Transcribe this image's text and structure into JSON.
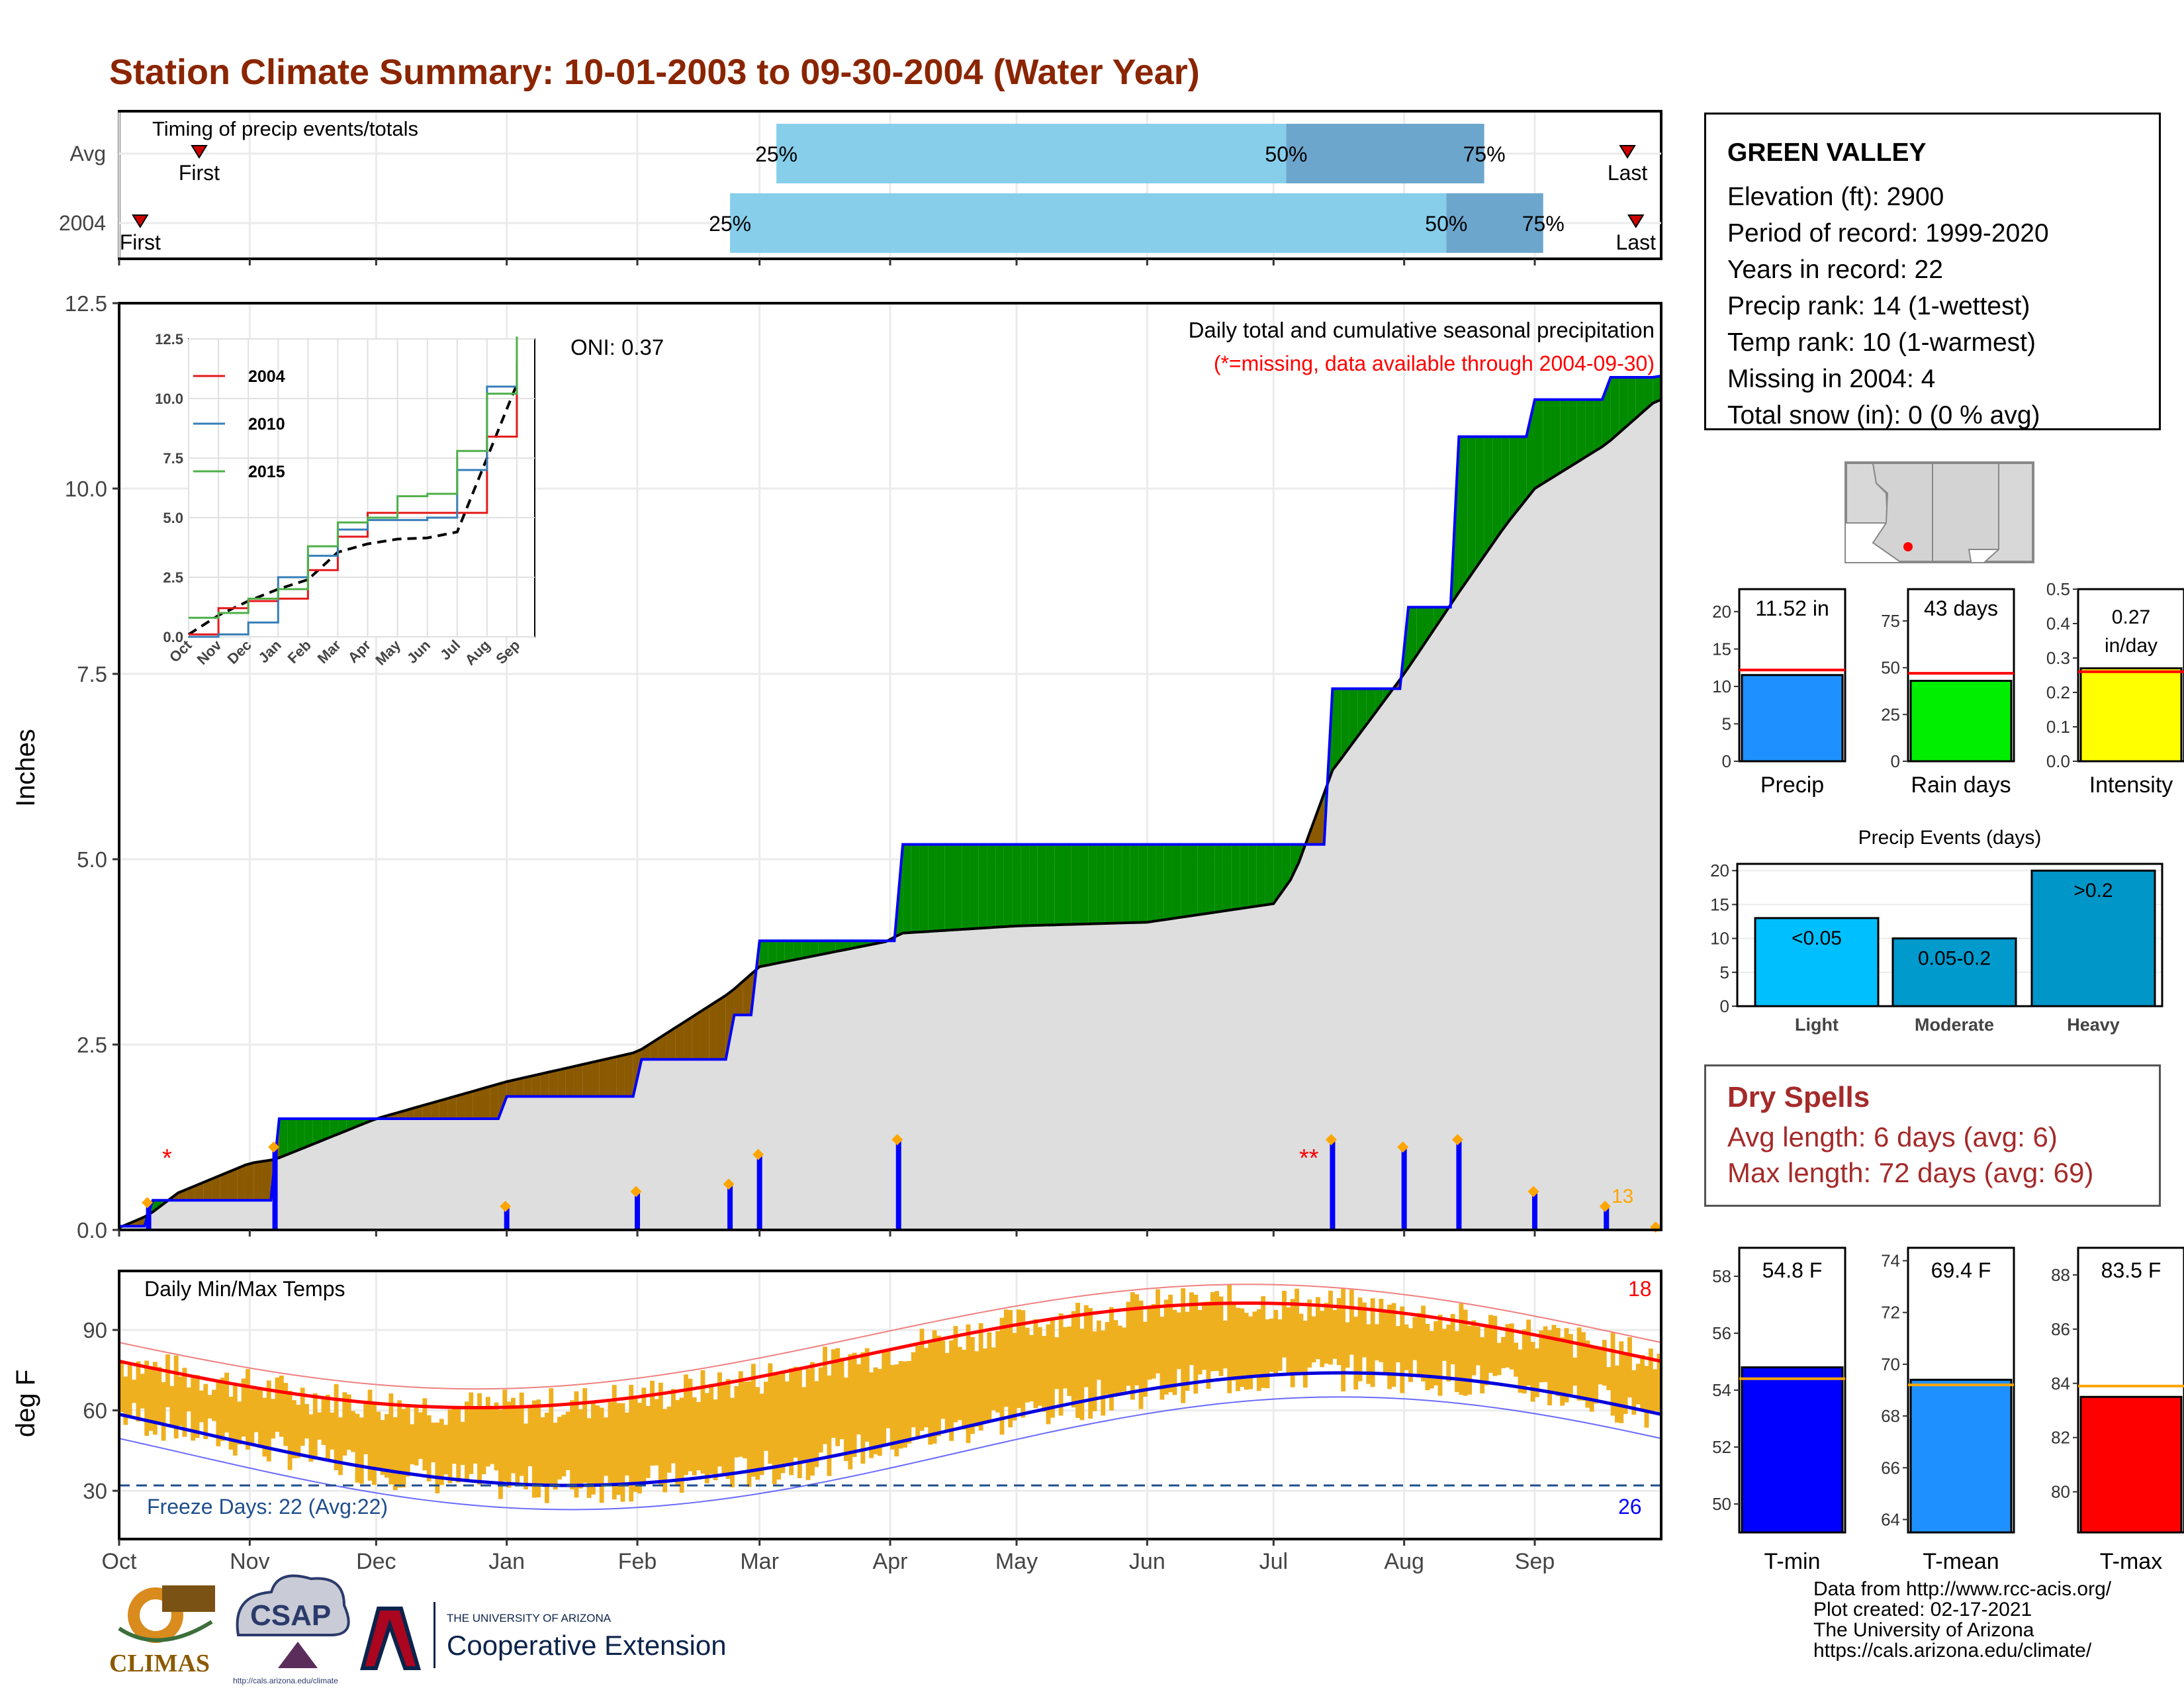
{
  "title": "Station Climate Summary: 10-01-2003 to 09-30-2004 (Water Year)",
  "timing_panel": {
    "label": "Timing of precip events/totals",
    "rows": [
      {
        "name": "Avg",
        "first": "2003-10-20",
        "q25": "2004-03-05",
        "q50": "2004-07-04",
        "q75": "2004-08-20",
        "last": "2004-09-23"
      },
      {
        "name": "2004",
        "first": "2003-10-06",
        "q25": "2004-02-23",
        "q50": "2004-08-11",
        "q75": "2004-09-03",
        "last": "2004-09-25"
      }
    ],
    "first_label": "First",
    "last_label": "Last",
    "q25_label": "25%",
    "q50_label": "50%",
    "q75_label": "75%"
  },
  "precip_panel": {
    "title": "Daily total and cumulative seasonal precipitation",
    "subtitle": "(*=missing, data available through 2004-09-30)",
    "oni": "ONI: 0.37",
    "ylabel": "Inches",
    "yticks": [
      "0.0",
      "2.5",
      "5.0",
      "7.5",
      "10.0",
      "12.5"
    ],
    "corner_count": "13"
  },
  "temp_panel": {
    "title": "Daily Min/Max Temps",
    "ylabel": "deg F",
    "yticks": [
      "30",
      "60",
      "90"
    ],
    "freeze_label": "Freeze Days: 22 (Avg:22)",
    "high_count": "18",
    "low_count": "26"
  },
  "month_ticks": [
    "Oct",
    "Nov",
    "Dec",
    "Jan",
    "Feb",
    "Mar",
    "Apr",
    "May",
    "Jun",
    "Jul",
    "Aug",
    "Sep"
  ],
  "chart_data": [
    {
      "type": "line",
      "title": "Daily total and cumulative seasonal precipitation",
      "ylabel": "Inches",
      "ylim": [
        0,
        12.5
      ],
      "x": [
        "2003-10-01",
        "2003-10-08",
        "2003-10-15",
        "2003-11-01",
        "2003-11-07",
        "2003-12-01",
        "2004-01-01",
        "2004-02-01",
        "2004-02-23",
        "2004-03-01",
        "2004-04-01",
        "2004-04-03",
        "2004-05-01",
        "2004-06-01",
        "2004-07-01",
        "2004-07-06",
        "2004-07-15",
        "2004-08-01",
        "2004-08-14",
        "2004-08-25",
        "2004-09-01",
        "2004-09-18",
        "2004-09-30"
      ],
      "series": [
        {
          "name": "2004",
          "values": [
            0.05,
            0.4,
            0.4,
            0.4,
            1.5,
            1.5,
            1.8,
            2.3,
            2.9,
            3.9,
            3.9,
            5.2,
            5.2,
            5.2,
            5.2,
            5.2,
            7.3,
            8.4,
            10.7,
            10.7,
            11.2,
            11.5,
            11.52
          ]
        },
        {
          "name": "Avg",
          "values": [
            0.03,
            0.2,
            0.5,
            0.9,
            0.95,
            1.5,
            2.0,
            2.4,
            3.2,
            3.55,
            3.9,
            4.0,
            4.1,
            4.15,
            4.4,
            4.8,
            6.2,
            7.5,
            8.6,
            9.5,
            10.0,
            10.6,
            11.2
          ]
        }
      ]
    },
    {
      "type": "line",
      "xticks": [
        "Oct",
        "Nov",
        "Dec",
        "Jan",
        "Feb",
        "Mar",
        "Apr",
        "May",
        "Jun",
        "Jul",
        "Aug",
        "Sep"
      ],
      "yticks": [
        "0.0",
        "2.5",
        "5.0",
        "7.5",
        "10.0",
        "12.5"
      ],
      "ylim": [
        0,
        12.5
      ],
      "legend": "top-left",
      "series": [
        {
          "name": "2004",
          "color": "#e41a1c",
          "values": [
            0.1,
            1.2,
            1.5,
            1.6,
            2.8,
            4.2,
            5.2,
            5.2,
            5.2,
            5.2,
            8.4,
            11.5
          ]
        },
        {
          "name": "2010",
          "color": "#377eb8",
          "values": [
            0.0,
            0.1,
            0.6,
            2.5,
            3.4,
            4.5,
            4.9,
            4.9,
            5.0,
            7.0,
            10.5,
            11.6
          ]
        },
        {
          "name": "2015",
          "color": "#4daf4a",
          "values": [
            0.8,
            1.0,
            1.6,
            2.0,
            3.8,
            4.8,
            5.0,
            5.9,
            6.0,
            7.8,
            10.2,
            12.6
          ]
        }
      ]
    },
    {
      "type": "bar",
      "categories": [
        "Precip",
        "Rain days",
        "Intensity"
      ],
      "values": [
        11.52,
        43,
        0.27
      ],
      "averages": [
        12.2,
        47,
        0.26
      ],
      "value_labels": [
        "11.52 in",
        "43 days",
        "0.27 in/day"
      ],
      "yticks": [
        [
          "0",
          "5",
          "10",
          "15",
          "20"
        ],
        [
          "0",
          "25",
          "50",
          "75"
        ],
        [
          "0.0",
          "0.1",
          "0.2",
          "0.3",
          "0.4",
          "0.5"
        ]
      ],
      "colors": [
        "#1e90ff",
        "#00ee00",
        "#ffff00"
      ]
    },
    {
      "type": "bar",
      "title": "Precip Events (days)",
      "categories": [
        "Light",
        "Moderate",
        "Heavy"
      ],
      "values": [
        13,
        10,
        20
      ],
      "value_labels": [
        "<0.05",
        "0.05-0.2",
        ">0.2"
      ],
      "yticks": [
        "0",
        "5",
        "10",
        "15",
        "20"
      ],
      "ylim": [
        0,
        21
      ],
      "colors": [
        "#00bfff",
        "#009acd",
        "#0096c8"
      ]
    },
    {
      "type": "bar",
      "categories": [
        "T-min",
        "T-mean",
        "T-max"
      ],
      "values": [
        54.8,
        69.4,
        83.5
      ],
      "averages": [
        54.4,
        69.2,
        83.9
      ],
      "value_labels": [
        "54.8 F",
        "69.4 F",
        "83.5 F"
      ],
      "yticks": [
        [
          "50",
          "52",
          "54",
          "56",
          "58"
        ],
        [
          "64",
          "66",
          "68",
          "70",
          "72",
          "74"
        ],
        [
          "80",
          "82",
          "84",
          "86",
          "88"
        ]
      ],
      "ylims": [
        [
          49,
          59
        ],
        [
          63.5,
          74.5
        ],
        [
          78.5,
          89
        ]
      ],
      "colors": [
        "#0000ff",
        "#1e90ff",
        "#ff0000"
      ]
    }
  ],
  "station": {
    "name": "GREEN VALLEY",
    "lines": [
      "Elevation (ft): 2900",
      "Period of record: 1999-2020",
      "Years in record: 22",
      "Precip rank: 14 (1-wettest)",
      "Temp rank: 10 (1-warmest)",
      "Missing in 2004: 4",
      "Total snow (in): 0 (0 % avg)"
    ]
  },
  "dry_spells": {
    "title": "Dry Spells",
    "avg": "Avg length: 6 days (avg: 6)",
    "max": "Max length: 72 days (avg: 69)"
  },
  "logos": {
    "climas": "CLIMAS",
    "csap": "CSAP",
    "csap_url": "http://cals.arizona.edu/climate",
    "ua_small": "THE UNIVERSITY OF ARIZONA",
    "ua_big": "Cooperative Extension"
  },
  "credits": [
    "Data from http://www.rcc-acis.org/",
    "Plot created: 02-17-2021",
    "The University of Arizona",
    "https://cals.arizona.edu/climate/"
  ]
}
